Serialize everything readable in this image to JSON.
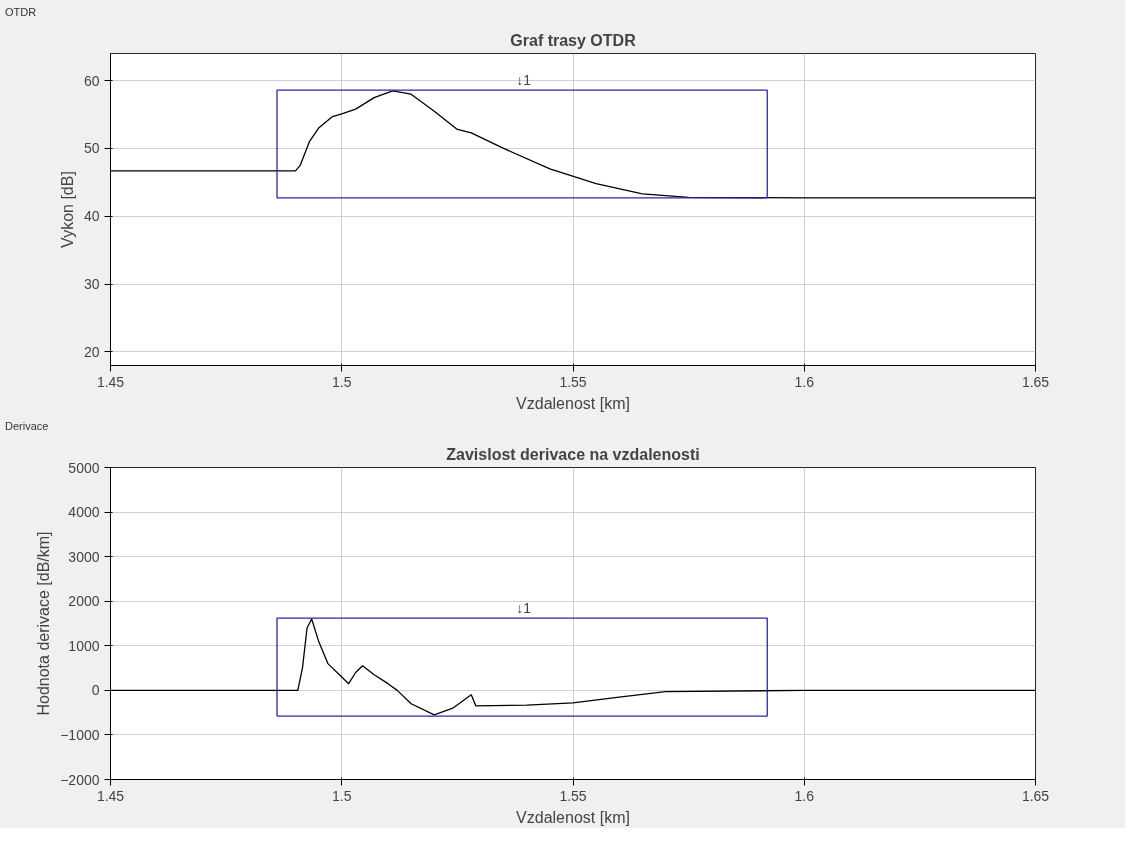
{
  "chart_data": [
    {
      "type": "line",
      "title": "Graf trasy OTDR",
      "xlabel": "Vzdalenost [km]",
      "ylabel": "Vykon [dB]",
      "annotations": [
        "OTDR",
        "↓1"
      ],
      "xlim": [
        1.45,
        1.65
      ],
      "ylim": [
        18,
        64
      ],
      "xticks": [
        1.45,
        1.5,
        1.55,
        1.6,
        1.65
      ],
      "yticks": [
        20,
        30,
        40,
        50,
        60
      ],
      "grid": true,
      "series": [
        {
          "color": "#000000",
          "x": [
            1.45,
            1.49,
            1.491,
            1.493,
            1.495,
            1.498,
            1.5,
            1.503,
            1.507,
            1.511,
            1.515,
            1.52,
            1.525,
            1.528,
            1.535,
            1.545,
            1.555,
            1.565,
            1.575,
            1.6,
            1.65
          ],
          "values": [
            46.7,
            46.7,
            47.5,
            51,
            53,
            54.7,
            55.1,
            55.8,
            57.5,
            58.5,
            58,
            55.5,
            52.8,
            52.3,
            50,
            47,
            44.8,
            43.3,
            42.8,
            42.7,
            42.7
          ]
        },
        {
          "color": "#2a2a9a",
          "x": [
            1.486,
            1.592
          ],
          "values": [
            42.7,
            42.7
          ]
        },
        {
          "color": "#2a2a9a",
          "x": [
            1.486,
            1.486,
            1.592,
            1.592
          ],
          "values": [
            42.7,
            58.6,
            58.6,
            42.7
          ]
        }
      ]
    },
    {
      "type": "line",
      "title": "Zavislost derivace na vzdalenosti",
      "xlabel": "Vzdalenost [km]",
      "ylabel": "Hodnota derivace [dB/km]",
      "annotations": [
        "Derivace",
        "↓1"
      ],
      "xlim": [
        1.45,
        1.65
      ],
      "ylim": [
        -2000,
        5000
      ],
      "xticks": [
        1.45,
        1.5,
        1.55,
        1.6,
        1.65
      ],
      "yticks": [
        -2000,
        -1000,
        0,
        1000,
        2000,
        3000,
        4000,
        5000
      ],
      "grid": true,
      "series": [
        {
          "color": "#000000",
          "x": [
            1.45,
            1.4905,
            1.4915,
            1.4925,
            1.4935,
            1.495,
            1.497,
            1.5,
            1.5015,
            1.503,
            1.5045,
            1.507,
            1.51,
            1.512,
            1.515,
            1.52,
            1.524,
            1.528,
            1.529,
            1.54,
            1.55,
            1.56,
            1.57,
            1.6,
            1.65
          ],
          "values": [
            0,
            0,
            500,
            1400,
            1600,
            1100,
            600,
            300,
            150,
            400,
            550,
            350,
            150,
            0,
            -300,
            -550,
            -400,
            -100,
            -350,
            -330,
            -280,
            -150,
            -30,
            0,
            0
          ]
        },
        {
          "color": "#2a2a9a",
          "x": [
            1.486,
            1.592
          ],
          "values": [
            -580,
            -580
          ]
        },
        {
          "color": "#2a2a9a",
          "x": [
            1.486,
            1.486,
            1.592,
            1.592
          ],
          "values": [
            -580,
            1620,
            1620,
            -580
          ]
        }
      ]
    }
  ]
}
